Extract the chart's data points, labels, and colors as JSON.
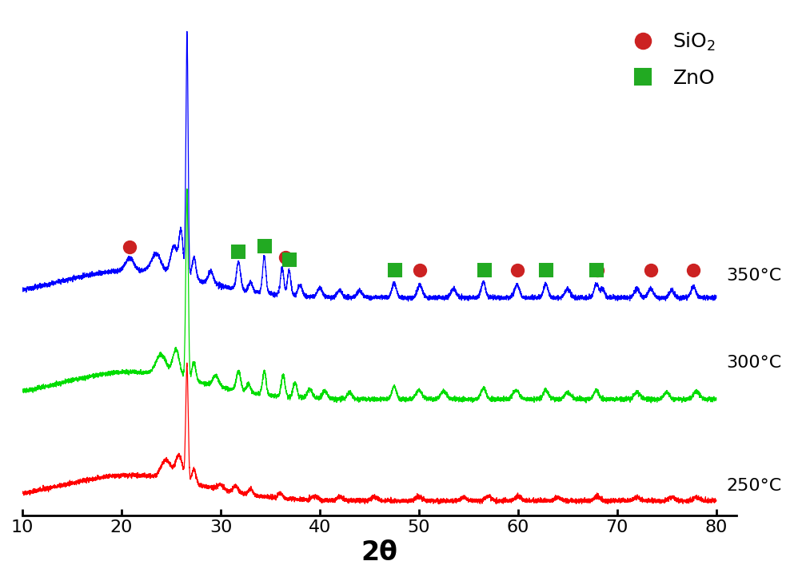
{
  "xlim": [
    10,
    80
  ],
  "xlabel": "2θ",
  "xlabel_fontsize": 24,
  "xlabel_fontweight": "bold",
  "tick_fontsize": 16,
  "line_colors": [
    "#ff0000",
    "#00dd00",
    "#0000ff"
  ],
  "labels": [
    "250°C",
    "300°C",
    "350°C"
  ],
  "label_fontsize": 16,
  "offsets": [
    0.0,
    0.28,
    0.56
  ],
  "sio2_color": "#cc2222",
  "zno_color": "#22aa22",
  "legend_fontsize": 18,
  "sio2_markers_x": [
    20.8,
    36.5,
    50.1,
    59.9,
    68.0,
    73.4,
    77.7
  ],
  "zno_markers_x": [
    31.8,
    34.4,
    36.9,
    47.6,
    56.6,
    62.8,
    67.9
  ],
  "noise_seed": 42,
  "background_color": "#ffffff",
  "figsize": [
    9.93,
    7.22
  ],
  "dpi": 100
}
